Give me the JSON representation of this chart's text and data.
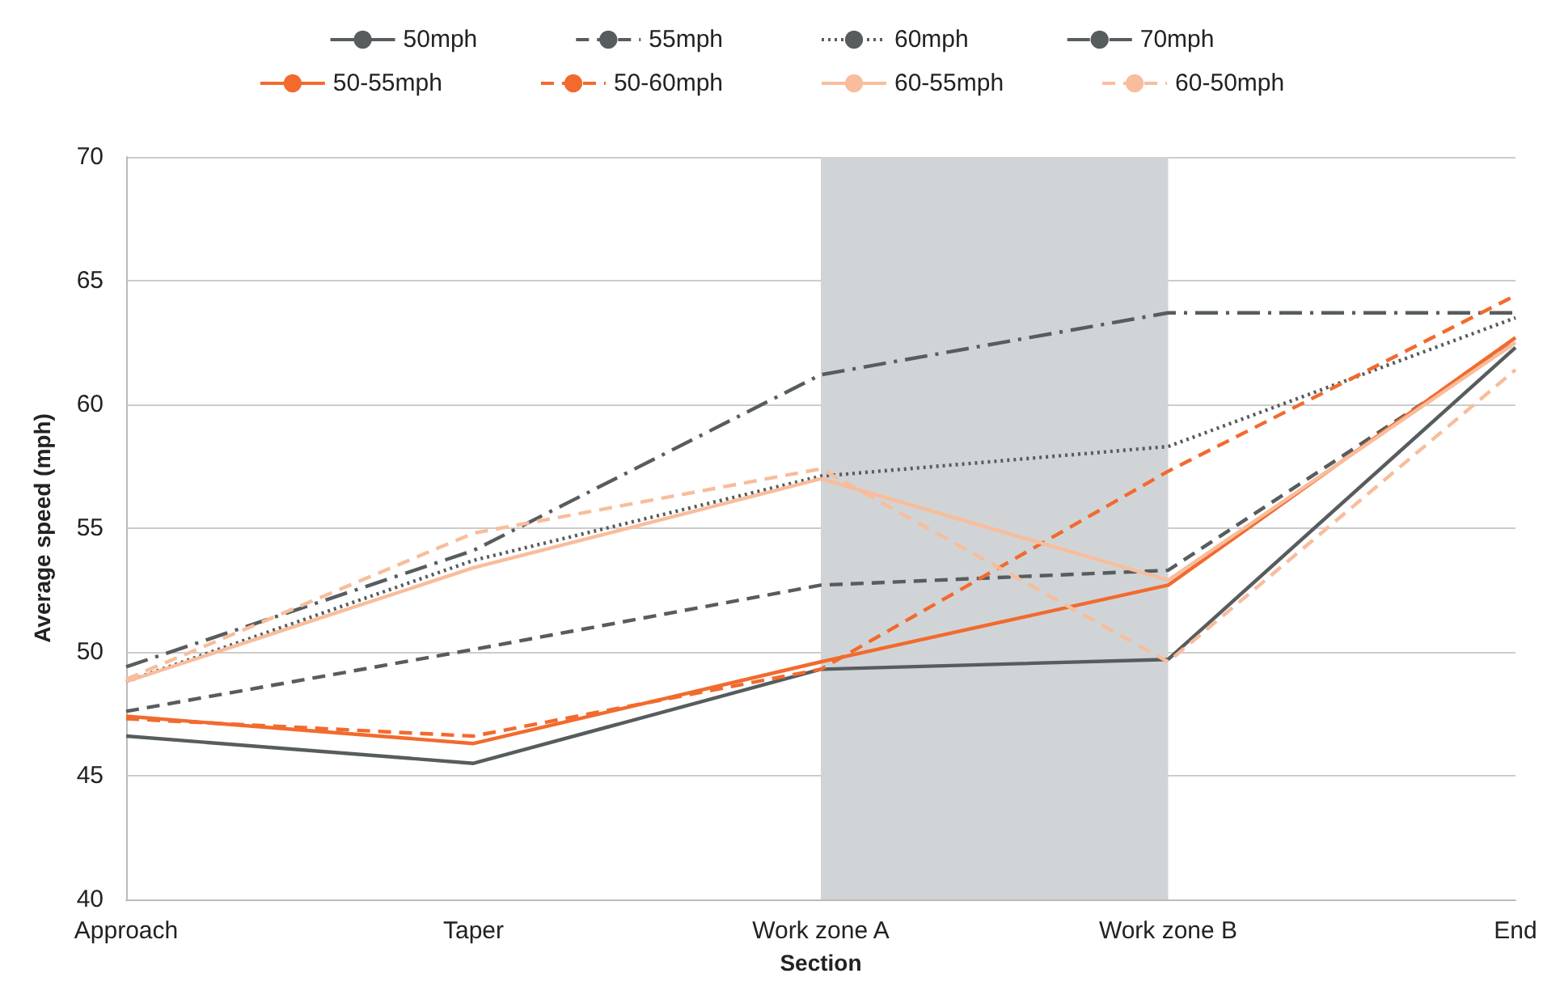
{
  "chart_data": {
    "type": "line",
    "xlabel": "Section",
    "ylabel": "Average speed (mph)",
    "categories": [
      "Approach",
      "Taper",
      "Work zone A",
      "Work zone B",
      "End"
    ],
    "ylim": [
      40,
      70
    ],
    "yticks": [
      40,
      45,
      50,
      55,
      60,
      65,
      70
    ],
    "grid": "y",
    "legend": "top",
    "marker": "none",
    "bands": [
      {
        "axis": "x",
        "from": "Work zone A",
        "to": "Work zone B",
        "color": "#d1d4d6"
      }
    ],
    "series": [
      {
        "name": "50mph",
        "color": "#575c5e",
        "line_style": "solid",
        "values": [
          46.6,
          45.5,
          49.3,
          49.7,
          62.3
        ]
      },
      {
        "name": "55mph",
        "color": "#575c5e",
        "line_style": "dashed",
        "values": [
          47.6,
          50.1,
          52.7,
          53.3,
          62.5
        ]
      },
      {
        "name": "60mph",
        "color": "#575c5e",
        "line_style": "dotted",
        "values": [
          48.8,
          53.7,
          57.1,
          58.3,
          63.5
        ]
      },
      {
        "name": "70mph",
        "color": "#575c5e",
        "line_style": "dashdot",
        "values": [
          49.4,
          54.1,
          61.2,
          63.7,
          63.7
        ]
      },
      {
        "name": "50-55mph",
        "color": "#f26a2e",
        "line_style": "solid",
        "values": [
          47.4,
          46.3,
          49.6,
          52.7,
          62.7
        ]
      },
      {
        "name": "50-60mph",
        "color": "#f26a2e",
        "line_style": "dashed",
        "values": [
          47.3,
          46.6,
          49.3,
          57.3,
          64.4
        ]
      },
      {
        "name": "60-55mph",
        "color": "#f8bd9c",
        "line_style": "solid",
        "values": [
          48.8,
          53.4,
          57.0,
          52.9,
          62.5
        ]
      },
      {
        "name": "60-50mph",
        "color": "#f8bd9c",
        "line_style": "dashed",
        "values": [
          48.9,
          54.8,
          57.4,
          49.6,
          61.4
        ]
      }
    ]
  }
}
